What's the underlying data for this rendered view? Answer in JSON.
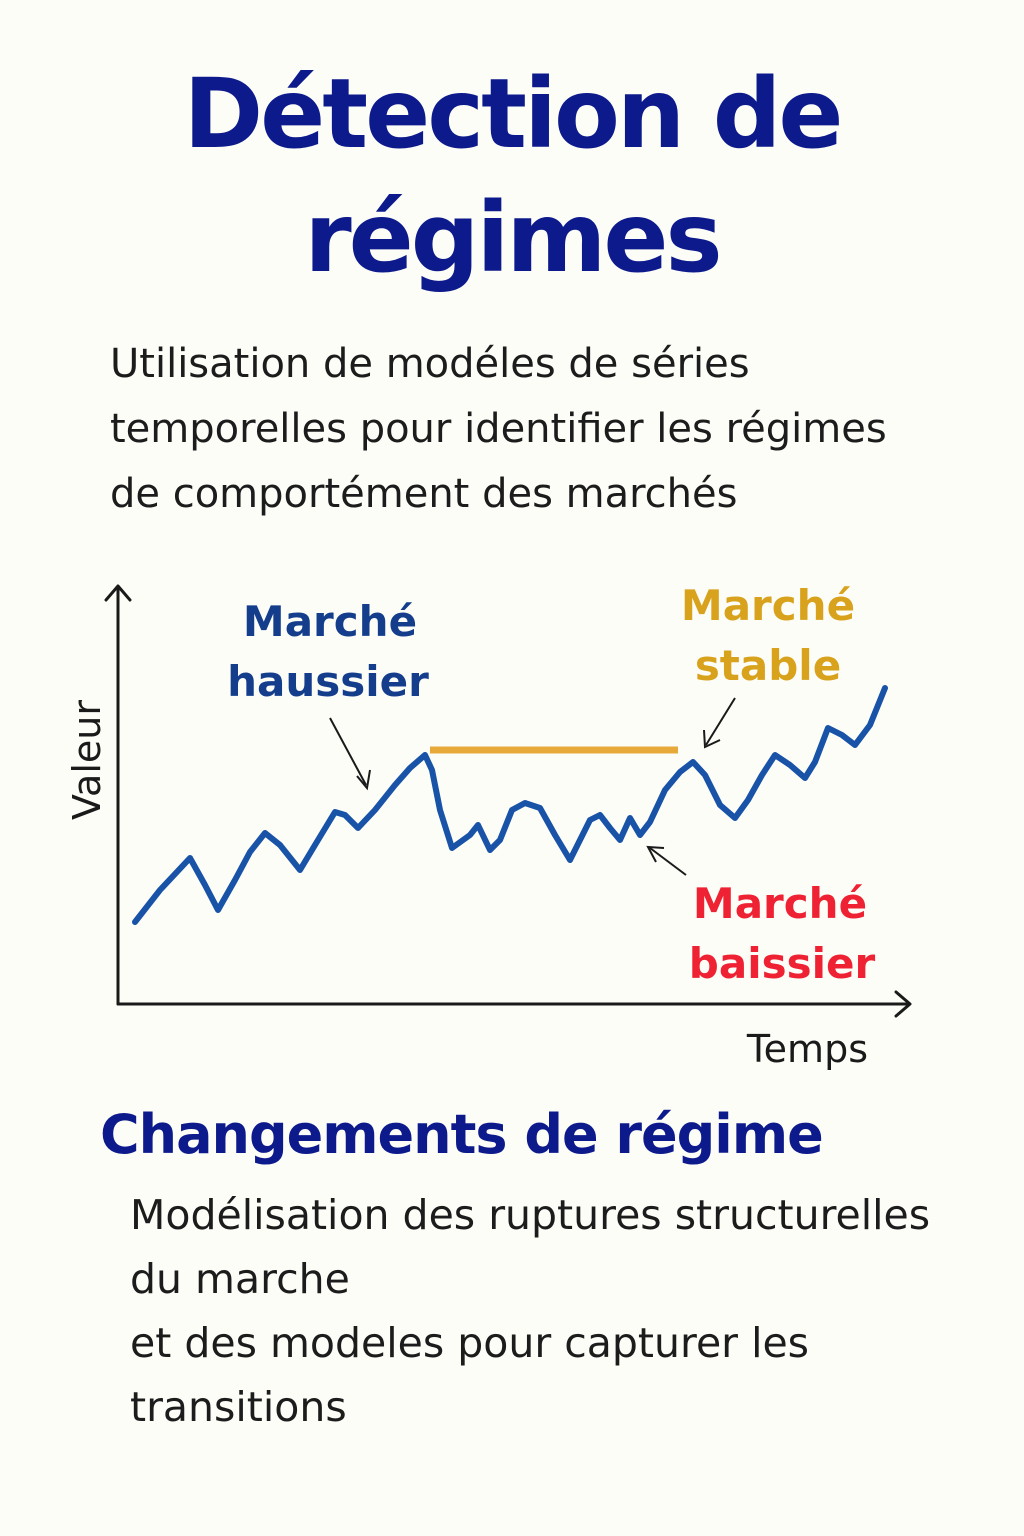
{
  "title_line1": "Détection de",
  "title_line2": "régimes",
  "intro_lines": [
    "Utilisation de modéles de séries",
    "temporelles pour identifier les régimes",
    "de comportément des marchés"
  ],
  "chart": {
    "axis_y_label": "Valeur",
    "axis_x_label": "Temps",
    "labels": {
      "bull": [
        "Marché",
        "haussier"
      ],
      "stable": [
        "Marché",
        "stable"
      ],
      "bear": [
        "Marché",
        "baissier"
      ]
    },
    "colors": {
      "series": "#1853a8",
      "bull_label": "#143e8c",
      "stable": "#e8a93b",
      "stable_label": "#d9a21c",
      "bear_label": "#ee2233",
      "axis": "#1a1a1a"
    }
  },
  "section": {
    "heading": "Changements de régime",
    "lines": [
      "Modélisation des ruptures structurelles",
      "du marche",
      "et des modeles pour capturer les",
      "transitions"
    ]
  }
}
